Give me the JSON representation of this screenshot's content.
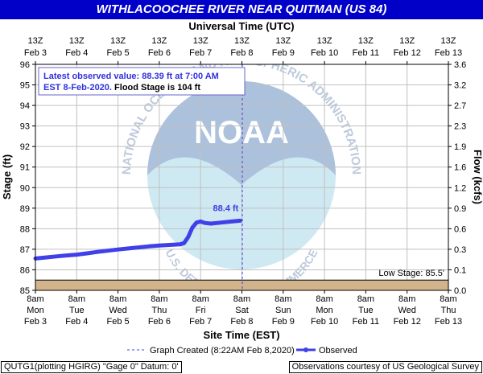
{
  "title": "WITHLACOOCHEE RIVER NEAR QUITMAN (US 84)",
  "footer": {
    "left": "QUTG1(plotting HGIRG) \"Gage 0\" Datum: 0'",
    "right": "Observations courtesy of US Geological Survey"
  },
  "colors": {
    "title_bg": "#0000c8",
    "observed": "#4040e8",
    "low_band": "#d2b48c",
    "grid": "#c0c0c0",
    "graph_created": "#4040e8"
  },
  "chart_data": {
    "type": "line",
    "top_axis_title": "Universal Time (UTC)",
    "top_ticks": [
      {
        "l1": "13Z",
        "l2": "Feb 3"
      },
      {
        "l1": "13Z",
        "l2": "Feb 4"
      },
      {
        "l1": "13Z",
        "l2": "Feb 5"
      },
      {
        "l1": "13Z",
        "l2": "Feb 6"
      },
      {
        "l1": "13Z",
        "l2": "Feb 7"
      },
      {
        "l1": "13Z",
        "l2": "Feb 8"
      },
      {
        "l1": "13Z",
        "l2": "Feb 9"
      },
      {
        "l1": "13Z",
        "l2": "Feb 10"
      },
      {
        "l1": "13Z",
        "l2": "Feb 11"
      },
      {
        "l1": "13Z",
        "l2": "Feb 12"
      },
      {
        "l1": "13Z",
        "l2": "Feb 13"
      }
    ],
    "xlabel": "Site Time (EST)",
    "bottom_ticks": [
      {
        "l1": "8am",
        "l2": "Mon",
        "l3": "Feb 3"
      },
      {
        "l1": "8am",
        "l2": "Tue",
        "l3": "Feb 4"
      },
      {
        "l1": "8am",
        "l2": "Wed",
        "l3": "Feb 5"
      },
      {
        "l1": "8am",
        "l2": "Thu",
        "l3": "Feb 6"
      },
      {
        "l1": "8am",
        "l2": "Fri",
        "l3": "Feb 7"
      },
      {
        "l1": "8am",
        "l2": "Sat",
        "l3": "Feb 8"
      },
      {
        "l1": "8am",
        "l2": "Sun",
        "l3": "Feb 9"
      },
      {
        "l1": "8am",
        "l2": "Mon",
        "l3": "Feb 10"
      },
      {
        "l1": "8am",
        "l2": "Tue",
        "l3": "Feb 11"
      },
      {
        "l1": "8am",
        "l2": "Wed",
        "l3": "Feb 12"
      },
      {
        "l1": "8am",
        "l2": "Thu",
        "l3": "Feb 13"
      }
    ],
    "xlim": [
      0,
      10
    ],
    "ylabel": "Stage (ft)",
    "ylim": [
      85,
      96
    ],
    "yticks": [
      85,
      86,
      87,
      88,
      89,
      90,
      91,
      92,
      93,
      94,
      95,
      96
    ],
    "ylabel2": "Flow (kcfs)",
    "y2ticks": [
      "0.0",
      "0.1",
      "0.3",
      "0.6",
      "0.9",
      "1.2",
      "1.6",
      "1.9",
      "2.3",
      "2.7",
      "3.2",
      "3.6"
    ],
    "grid": true,
    "info_box": {
      "line1": "Latest observed value: 88.39 ft at 7:00 AM",
      "line2_blue": "EST 8-Feb-2020.",
      "line2_black": " Flood Stage is 104 ft"
    },
    "low_stage": {
      "value": 85.5,
      "label": "Low Stage: 85.5'"
    },
    "graph_created": {
      "x": 5.01,
      "label": "Graph Created (8:22AM Feb 8,2020)"
    },
    "series": [
      {
        "name": "Observed",
        "last_label": "88.4 ft",
        "x": [
          0,
          0.25,
          0.5,
          0.75,
          1.0,
          1.25,
          1.5,
          1.75,
          2.0,
          2.25,
          2.5,
          2.75,
          3.0,
          3.25,
          3.5,
          3.6,
          3.7,
          3.8,
          3.9,
          4.0,
          4.1,
          4.25,
          4.5,
          4.75,
          4.96
        ],
        "y": [
          86.55,
          86.6,
          86.65,
          86.7,
          86.74,
          86.8,
          86.87,
          86.93,
          86.99,
          87.04,
          87.09,
          87.14,
          87.18,
          87.21,
          87.24,
          87.3,
          87.6,
          88.05,
          88.3,
          88.35,
          88.28,
          88.25,
          88.3,
          88.35,
          88.39
        ]
      }
    ],
    "legend": {
      "graph_created": "Graph Created (8:22AM Feb 8,2020)",
      "observed": "Observed"
    },
    "watermark": {
      "center": "NOAA",
      "ring_top": "NATIONAL OCEANIC AND ATMOSPHERIC ADMINISTRATION",
      "ring_bottom": "U.S. DEPARTMENT OF COMMERCE"
    }
  }
}
